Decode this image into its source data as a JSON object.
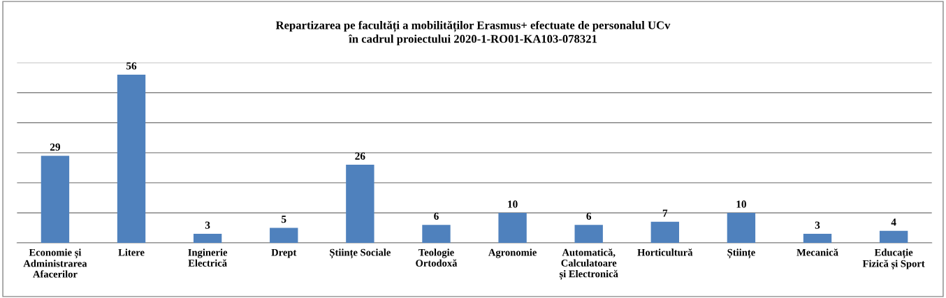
{
  "chart_data": {
    "type": "bar",
    "title": "Repartizarea pe facultăți a mobilităților Erasmus+ efectuate de personalul UCv\nîn cadrul proiectului 2020-1-RO01-KA103-078321",
    "categories": [
      "Economie și\nAdministrarea\nAfacerilor",
      "Litere",
      "Inginerie\nElectrică",
      "Drept",
      "Științe Sociale",
      "Teologie\nOrtodoxă",
      "Agronomie",
      "Automatică,\nCalculatoare\nși Electronică",
      "Horticultură",
      "Științe",
      "Mecanică",
      "Educație\nFizică și Sport"
    ],
    "values": [
      29,
      56,
      3,
      5,
      26,
      6,
      10,
      6,
      7,
      10,
      3,
      4
    ],
    "color": "#4f81bd",
    "ylim": [
      0,
      60
    ],
    "yticks": [
      {
        "value": 0,
        "label": null
      },
      {
        "value": 10,
        "label": null
      },
      {
        "value": 20,
        "label": null
      },
      {
        "value": 30,
        "label": null
      },
      {
        "value": 40,
        "label": null
      },
      {
        "value": 50,
        "label": null
      },
      {
        "value": 60,
        "label": null
      }
    ],
    "tick_labels": "x",
    "grid": "y",
    "data_labels": true
  }
}
